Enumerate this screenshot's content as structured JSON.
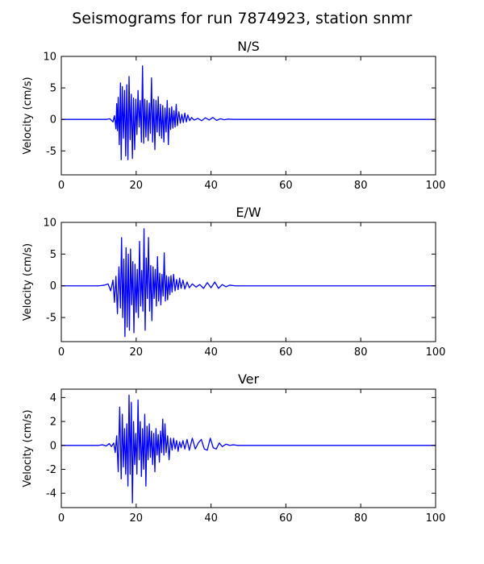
{
  "figure": {
    "title": "Seismograms for run 7874923, station snmr"
  },
  "chart_data": [
    {
      "type": "line",
      "title": "N/S",
      "xlabel": "",
      "ylabel": "Velocity (cm/s)",
      "xlim": [
        0,
        100
      ],
      "ylim": [
        -8.8,
        10
      ],
      "xticks": [
        0,
        20,
        40,
        60,
        80,
        100
      ],
      "yticks": [
        -5,
        0,
        5,
        10
      ],
      "grid": false,
      "color": "#0000ff",
      "series": [
        {
          "x": [
            0,
            5,
            10,
            12,
            13,
            13.8,
            14.2,
            14.6,
            14.8,
            15.0,
            15.2,
            15.5,
            15.8,
            16.0,
            16.3,
            16.6,
            16.9,
            17.2,
            17.5,
            17.8,
            18.1,
            18.4,
            18.7,
            19.0,
            19.3,
            19.6,
            19.9,
            20.2,
            20.5,
            20.8,
            21.1,
            21.4,
            21.7,
            22.0,
            22.3,
            22.6,
            22.9,
            23.2,
            23.5,
            23.8,
            24.1,
            24.4,
            24.7,
            25.0,
            25.3,
            25.6,
            25.9,
            26.2,
            26.5,
            26.8,
            27.1,
            27.4,
            27.7,
            28.0,
            28.3,
            28.6,
            28.9,
            29.2,
            29.5,
            29.8,
            30.1,
            30.4,
            30.7,
            31.0,
            31.4,
            31.8,
            32.2,
            32.6,
            33.0,
            33.4,
            33.8,
            34.3,
            34.8,
            35.5,
            36.5,
            37.5,
            38.5,
            39.5,
            40.5,
            41.5,
            42.5,
            43.5,
            44.5,
            46,
            48,
            50,
            60,
            70,
            80,
            90,
            100
          ],
          "y": [
            0,
            0,
            0,
            0,
            0.1,
            -0.4,
            0.6,
            -1.5,
            2.5,
            -1.8,
            3.5,
            -4.0,
            5.8,
            -6.4,
            5.2,
            -3.0,
            4.6,
            -5.8,
            5.5,
            -6.4,
            6.8,
            -3.2,
            4.0,
            -6.2,
            3.4,
            -4.8,
            3.2,
            -2.4,
            4.6,
            -1.2,
            3.0,
            -3.6,
            8.5,
            -3.8,
            3.2,
            -2.8,
            3.0,
            -3.4,
            2.6,
            -2.2,
            6.6,
            -3.6,
            3.2,
            -4.8,
            3.0,
            -2.0,
            3.6,
            -2.6,
            2.4,
            -3.0,
            2.2,
            -3.6,
            1.8,
            -2.0,
            3.0,
            -4.0,
            1.8,
            -1.6,
            2.0,
            -1.4,
            1.4,
            -1.2,
            2.4,
            -1.0,
            1.2,
            -0.6,
            0.8,
            -0.5,
            1.0,
            -0.4,
            0.7,
            -0.2,
            0.3,
            -0.1,
            0.15,
            -0.2,
            0.25,
            -0.1,
            0.3,
            -0.15,
            0.1,
            -0.05,
            0.05,
            0,
            0,
            0,
            0,
            0,
            0,
            0,
            0
          ]
        }
      ]
    },
    {
      "type": "line",
      "title": "E/W",
      "xlabel": "",
      "ylabel": "Velocity (cm/s)",
      "xlim": [
        0,
        100
      ],
      "ylim": [
        -8.8,
        10
      ],
      "xticks": [
        0,
        20,
        40,
        60,
        80,
        100
      ],
      "yticks": [
        -5,
        0,
        5,
        10
      ],
      "grid": false,
      "color": "#0000ff",
      "series": [
        {
          "x": [
            0,
            5,
            10,
            11.5,
            12.5,
            13.2,
            13.8,
            14.2,
            14.6,
            15.0,
            15.4,
            15.8,
            16.1,
            16.4,
            16.7,
            17.0,
            17.3,
            17.6,
            17.9,
            18.2,
            18.5,
            18.8,
            19.1,
            19.4,
            19.7,
            20.0,
            20.3,
            20.6,
            20.9,
            21.2,
            21.5,
            21.8,
            22.1,
            22.4,
            22.7,
            23.0,
            23.3,
            23.6,
            23.9,
            24.2,
            24.5,
            24.8,
            25.1,
            25.4,
            25.7,
            26.0,
            26.3,
            26.6,
            26.9,
            27.2,
            27.5,
            27.8,
            28.1,
            28.4,
            28.7,
            29.0,
            29.3,
            29.6,
            30.0,
            30.4,
            30.8,
            31.2,
            31.6,
            32.0,
            32.5,
            33.0,
            33.6,
            34.2,
            35.0,
            36.0,
            37.0,
            38.0,
            39.0,
            40.0,
            41.0,
            42.0,
            43.0,
            44.0,
            45.0,
            46.5,
            48,
            50,
            60,
            70,
            80,
            90,
            100
          ],
          "y": [
            0,
            0,
            0,
            0.1,
            0.3,
            -0.8,
            0.9,
            -2.6,
            1.5,
            -4.4,
            3.0,
            -3.5,
            7.6,
            -5.0,
            4.2,
            -8.0,
            6.0,
            -6.5,
            5.0,
            -7.0,
            5.8,
            -3.0,
            3.8,
            -7.4,
            3.4,
            -4.2,
            2.6,
            -5.0,
            7.0,
            -3.2,
            2.4,
            -4.0,
            9.0,
            -7.0,
            4.4,
            -2.0,
            7.6,
            -4.0,
            3.2,
            -5.5,
            3.0,
            -2.0,
            2.6,
            -3.2,
            4.6,
            -2.4,
            2.0,
            -3.0,
            1.8,
            -1.6,
            5.2,
            -2.4,
            1.6,
            -2.2,
            1.4,
            -1.4,
            1.6,
            -1.0,
            1.8,
            -0.8,
            1.0,
            -0.6,
            1.2,
            -0.4,
            0.9,
            -0.5,
            0.6,
            -0.3,
            0.3,
            -0.2,
            0.2,
            -0.4,
            0.5,
            -0.3,
            0.6,
            -0.4,
            0.2,
            -0.15,
            0.1,
            0,
            0,
            0,
            0,
            0,
            0,
            0,
            0
          ]
        }
      ]
    },
    {
      "type": "line",
      "title": "Ver",
      "xlabel": "",
      "ylabel": "Velocity (cm/s)",
      "xlim": [
        0,
        100
      ],
      "ylim": [
        -5.2,
        4.7
      ],
      "xticks": [
        0,
        20,
        40,
        60,
        80,
        100
      ],
      "yticks": [
        -4,
        -2,
        0,
        2,
        4
      ],
      "grid": false,
      "color": "#0000ff",
      "series": [
        {
          "x": [
            0,
            5,
            10,
            11,
            12,
            12.8,
            13.4,
            14.0,
            14.4,
            14.8,
            15.2,
            15.6,
            16.0,
            16.3,
            16.6,
            16.9,
            17.2,
            17.5,
            17.8,
            18.1,
            18.4,
            18.7,
            19.0,
            19.3,
            19.6,
            19.9,
            20.2,
            20.5,
            20.8,
            21.1,
            21.4,
            21.7,
            22.0,
            22.3,
            22.6,
            22.9,
            23.2,
            23.5,
            23.8,
            24.1,
            24.4,
            24.7,
            25.0,
            25.3,
            25.6,
            25.9,
            26.2,
            26.5,
            26.8,
            27.1,
            27.4,
            27.7,
            28.0,
            28.4,
            28.8,
            29.2,
            29.6,
            30.0,
            30.4,
            30.8,
            31.2,
            31.6,
            32.0,
            32.5,
            33.0,
            33.6,
            34.2,
            35.0,
            35.8,
            36.6,
            37.4,
            38.2,
            39.0,
            39.8,
            40.6,
            41.4,
            42.2,
            43.0,
            44.0,
            45.0,
            46.0,
            47.0,
            48.0,
            50,
            60,
            70,
            80,
            90,
            100
          ],
          "y": [
            0,
            0,
            0,
            0.05,
            -0.05,
            0.15,
            -0.1,
            0.2,
            -0.6,
            0.8,
            -2.2,
            3.2,
            -2.8,
            2.6,
            -1.8,
            1.4,
            -2.4,
            1.8,
            -3.4,
            4.2,
            -2.4,
            3.6,
            -4.8,
            2.0,
            -1.6,
            1.0,
            -2.4,
            3.8,
            -1.2,
            2.0,
            -2.6,
            1.4,
            -2.0,
            2.6,
            -3.4,
            1.6,
            -1.2,
            1.8,
            -1.0,
            1.2,
            -1.6,
            1.0,
            -2.2,
            1.4,
            -0.8,
            0.9,
            -1.4,
            1.2,
            -0.6,
            2.2,
            -0.8,
            1.8,
            -0.6,
            0.8,
            -1.2,
            0.6,
            -0.4,
            0.6,
            -0.3,
            0.4,
            -0.5,
            0.3,
            -0.2,
            0.4,
            -0.3,
            0.5,
            -0.4,
            0.6,
            -0.3,
            0.2,
            0.5,
            -0.3,
            -0.4,
            0.6,
            -0.2,
            -0.3,
            0.2,
            -0.1,
            0.1,
            0,
            0.05,
            0,
            0,
            0,
            0,
            0,
            0,
            0,
            0
          ]
        }
      ]
    }
  ]
}
